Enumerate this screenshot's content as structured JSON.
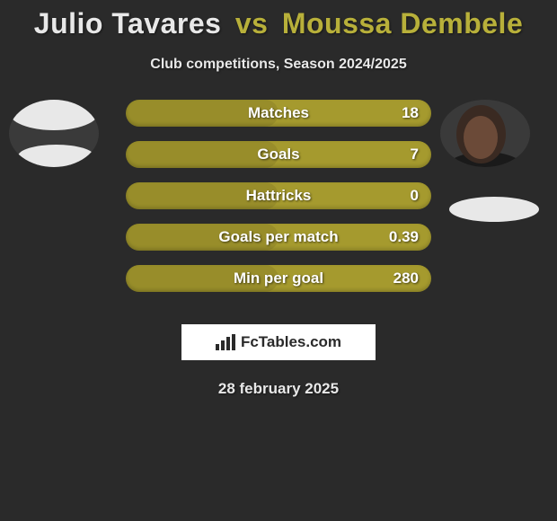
{
  "title": {
    "player1": "Julio Tavares",
    "vs": "vs",
    "player2": "Moussa Dembele",
    "player1_color": "#e8e8e8",
    "vs_color": "#b8b03a",
    "player2_color": "#b8b03a",
    "fontsize": 32
  },
  "subtitle": {
    "text": "Club competitions, Season 2024/2025",
    "color": "#e8e8e8",
    "fontsize": 16
  },
  "background_color": "#2a2a2a",
  "bar_style": {
    "bar_color": "#a59a2e",
    "text_color": "#ffffff",
    "height": 30,
    "radius": 15,
    "fontsize": 17
  },
  "stats": [
    {
      "label": "Matches",
      "value": "18",
      "fill_pct": 50
    },
    {
      "label": "Goals",
      "value": "7",
      "fill_pct": 50
    },
    {
      "label": "Hattricks",
      "value": "0",
      "fill_pct": 50
    },
    {
      "label": "Goals per match",
      "value": "0.39",
      "fill_pct": 50
    },
    {
      "label": "Min per goal",
      "value": "280",
      "fill_pct": 50
    }
  ],
  "branding": {
    "text": "FcTables.com",
    "bg_color": "#ffffff",
    "text_color": "#2a2a2a"
  },
  "date": {
    "text": "28 february 2025",
    "color": "#e8e8e8",
    "fontsize": 17
  },
  "avatars": {
    "left": {
      "bg": "#3a3a3a",
      "ellipse_color": "#e8e8e8"
    },
    "right": {
      "bg": "#3a3a3a",
      "head_color": "#3a2a22",
      "face_color": "#6b4a38",
      "shirt_color": "#1a1a1a"
    },
    "right_extra_ellipse_color": "#e8e8e8"
  }
}
